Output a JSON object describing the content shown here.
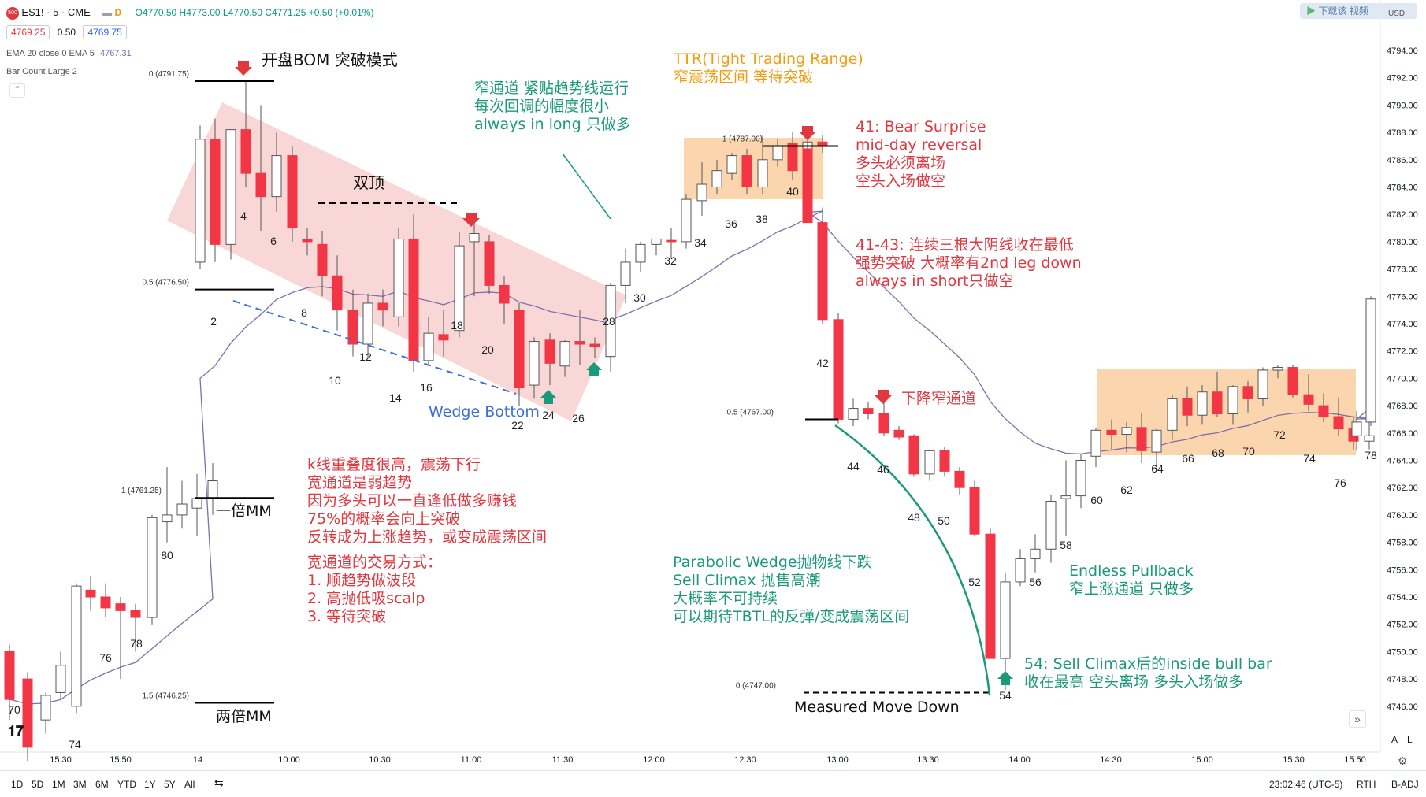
{
  "header": {
    "symbol": "ES1! · 5 · CME",
    "open": "O4770.50",
    "high": "H4773.00",
    "low": "L4770.50",
    "close": "C4771.25",
    "change": "+0.50 (+0.01%)",
    "bid": "4769.25",
    "spread": "0.50",
    "ask": "4769.75",
    "ema_label": "EMA 20 close 0 EMA 5",
    "ema_value": "4767.31",
    "indicator2": "Bar Count Large 2",
    "top_right": "下载该 视频",
    "currency": "USD"
  },
  "colors": {
    "up": "#ffffff",
    "down": "#f23645",
    "ema": "#7e6fb0",
    "zone": "#f6b26b",
    "red_text": "#e2373f",
    "green_text": "#1a9a7a",
    "blue_text": "#3d6fd6",
    "orange_text": "#f39c12"
  },
  "bottom": {
    "timeframes": [
      "1D",
      "5D",
      "1M",
      "3M",
      "6M",
      "YTD",
      "1Y",
      "5Y",
      "All"
    ],
    "clock": "23:02:46 (UTC-5)",
    "session": "RTH",
    "adj": "B-ADJ",
    "scale_a": "A",
    "scale_l": "L"
  },
  "chart_data": {
    "type": "candlestick",
    "y_ticks": [
      4746,
      4748,
      4750,
      4752,
      4754,
      4756,
      4758,
      4760,
      4762,
      4764,
      4766,
      4768,
      4770,
      4772,
      4774,
      4776,
      4778,
      4780,
      4782,
      4784,
      4786,
      4788,
      4790,
      4792,
      4794
    ],
    "x_ticks": [
      "15:30",
      "15:50",
      "14",
      "10:00",
      "10:30",
      "11:00",
      "11:30",
      "12:00",
      "12:30",
      "13:00",
      "13:30",
      "14:00",
      "14:30",
      "15:00",
      "15:30",
      "15:50"
    ],
    "candles": [
      [
        4750,
        4750.5,
        4745,
        4746.5
      ],
      [
        4748,
        4748.5,
        4742,
        4743
      ],
      [
        4745,
        4747,
        4744,
        4746.8
      ],
      [
        4747,
        4750,
        4746.5,
        4749
      ],
      [
        4746,
        4755,
        4745.5,
        4754.8
      ],
      [
        4754.5,
        4755.5,
        4753,
        4754
      ],
      [
        4754,
        4755,
        4752.5,
        4753.2
      ],
      [
        4753.5,
        4754,
        4748,
        4753
      ],
      [
        4753,
        4753.5,
        4750,
        4752.5
      ],
      [
        4752.5,
        4760,
        4752,
        4759.8
      ],
      [
        4759.5,
        4763.5,
        4758,
        4760
      ],
      [
        4760,
        4762.5,
        4759,
        4760.8
      ],
      [
        4760.5,
        4763,
        4758.5,
        4761.2
      ],
      [
        4761.2,
        4763.8,
        4760,
        4762.5
      ],
      [
        4778.5,
        4788.5,
        4778,
        4787.5
      ],
      [
        4787.5,
        4789,
        4778.5,
        4779.8
      ],
      [
        4779.8,
        4788,
        4778.7,
        4788.2
      ],
      [
        4788.2,
        4791.8,
        4784,
        4785
      ],
      [
        4785,
        4790,
        4780.8,
        4783.3
      ],
      [
        4783.3,
        4788,
        4782.2,
        4786.3
      ],
      [
        4786.3,
        4787,
        4780,
        4781
      ],
      [
        4780.2,
        4781,
        4779,
        4780
      ],
      [
        4779.8,
        4780.8,
        4776,
        4777.5
      ],
      [
        4777.5,
        4779,
        4773.5,
        4775
      ],
      [
        4775,
        4776.5,
        4771.6,
        4772.5
      ],
      [
        4772.5,
        4776.2,
        4771.5,
        4775.5
      ],
      [
        4775.5,
        4776.5,
        4773.8,
        4775
      ],
      [
        4774.5,
        4781,
        4773.8,
        4780.2
      ],
      [
        4780.2,
        4782,
        4770.5,
        4771.3
      ],
      [
        4771.3,
        4774.5,
        4771,
        4773.3
      ],
      [
        4773.2,
        4775,
        4771.6,
        4772.8
      ],
      [
        4773.5,
        4780.7,
        4773,
        4779.7
      ],
      [
        4780,
        4782,
        4776,
        4780.6
      ],
      [
        4780,
        4780.5,
        4776.2,
        4776.8
      ],
      [
        4776.8,
        4777.5,
        4774,
        4775.5
      ],
      [
        4775,
        4775.5,
        4768,
        4769.3
      ],
      [
        4769.5,
        4773,
        4768.5,
        4772.7
      ],
      [
        4772.8,
        4773.3,
        4769.5,
        4771.1
      ],
      [
        4770.9,
        4772.8,
        4770.1,
        4772.7
      ],
      [
        4772.7,
        4775,
        4771,
        4772.5
      ],
      [
        4772.5,
        4773,
        4771.5,
        4772.3
      ],
      [
        4772.1,
        4772.7,
        4770.5,
        4771.6
      ],
      [
        4771.6,
        4777,
        4771,
        4776.8
      ],
      [
        4776.8,
        4779.5,
        4775.5,
        4778.5
      ],
      [
        4778.5,
        4780,
        4777.8,
        4779.8
      ],
      [
        4779.8,
        4780.2,
        4779,
        4780.2
      ],
      [
        4780.1,
        4781,
        4778.8,
        4780
      ],
      [
        4780,
        4783.5,
        4779.5,
        4783.1
      ],
      [
        4783,
        4785.8,
        4781.9,
        4784.2
      ],
      [
        4784,
        4786,
        4783.5,
        4785.2
      ],
      [
        4785,
        4786.5,
        4784.5,
        4786.3
      ],
      [
        4786.3,
        4786.8,
        4783.5,
        4784
      ],
      [
        4784,
        4787.8,
        4783.5,
        4786
      ],
      [
        4786,
        4787.5,
        4785.5,
        4787
      ],
      [
        4787.2,
        4788,
        4784.5,
        4785.2
      ],
      [
        4785.2,
        4787.5,
        4784.5,
        4787.3
      ],
      [
        4787.3,
        4787.8,
        4786.5,
        4787
      ],
      [
        4786.8,
        4787.5,
        4781.5,
        4781.4
      ],
      [
        4781.4,
        4782.5,
        4774,
        4774.3
      ],
      [
        4774.3,
        4774.8,
        4766.7,
        4767
      ],
      [
        4767,
        4768.5,
        4766.5,
        4767.8
      ],
      [
        4767.8,
        4768.3,
        4767,
        4767.4
      ],
      [
        4767.4,
        4768.3,
        4765.8,
        4766
      ],
      [
        4766.2,
        4766.5,
        4765.5,
        4765.7
      ],
      [
        4765.8,
        4765.9,
        4762.8,
        4763
      ],
      [
        4763,
        4764.8,
        4762.5,
        4764.7
      ],
      [
        4764.7,
        4765,
        4762.8,
        4763.2
      ],
      [
        4763.2,
        4763.5,
        4761.5,
        4762
      ],
      [
        4762,
        4762.5,
        4758.5,
        4758.6
      ],
      [
        4758.6,
        4759,
        4749.5,
        4749.5
      ],
      [
        4749.5,
        4755.8,
        4747.2,
        4755.1
      ],
      [
        4755.1,
        4757.5,
        4754.8,
        4756.8
      ],
      [
        4756.8,
        4758.6,
        4755.8,
        4757.5
      ],
      [
        4757.5,
        4761.5,
        4756.5,
        4761
      ],
      [
        4761.2,
        4764,
        4758.5,
        4761.4
      ],
      [
        4761.4,
        4764.5,
        4760.5,
        4764
      ],
      [
        4764.3,
        4766.4,
        4763.5,
        4766.2
      ],
      [
        4766.2,
        4767,
        4764.8,
        4765.9
      ],
      [
        4765.9,
        4766.8,
        4764.6,
        4766.4
      ],
      [
        4766.4,
        4767.5,
        4763.8,
        4764.7
      ],
      [
        4764.6,
        4766.3,
        4763.2,
        4766.2
      ],
      [
        4766.2,
        4768.8,
        4765.5,
        4768.5
      ],
      [
        4768.5,
        4769.4,
        4766.5,
        4767.3
      ],
      [
        4767.3,
        4769.5,
        4766.6,
        4769
      ],
      [
        4769,
        4770.5,
        4767.2,
        4767.4
      ],
      [
        4767.4,
        4769.5,
        4766.6,
        4769.4
      ],
      [
        4769.4,
        4769.8,
        4767.5,
        4768.5
      ],
      [
        4768.5,
        4770.8,
        4768,
        4770.6
      ],
      [
        4770.6,
        4771,
        4770,
        4770.8
      ],
      [
        4770.8,
        4771,
        4768.6,
        4768.8
      ],
      [
        4768.8,
        4770.3,
        4767.6,
        4768.1
      ],
      [
        4768,
        4768.9,
        4766.8,
        4767.2
      ],
      [
        4767.2,
        4768.6,
        4765.8,
        4766.3
      ],
      [
        4766.3,
        4767.2,
        4764.8,
        4765.4
      ],
      [
        4765.4,
        4767.6,
        4764.8,
        4765.8
      ],
      [
        4765.8,
        4767.6,
        4764.7,
        4766.8
      ],
      [
        4766.8,
        4776,
        4766.5,
        4775.8
      ]
    ],
    "bar_numbers": [
      "2",
      "4",
      "6",
      "8",
      "10",
      "12",
      "14",
      "16",
      "18",
      "20",
      "22",
      "24",
      "26",
      "28",
      "30",
      "32",
      "34",
      "36",
      "38",
      "40",
      "42",
      "44",
      "46",
      "48",
      "50",
      "52",
      "54",
      "56",
      "58",
      "60",
      "62",
      "64",
      "66",
      "68",
      "70",
      "72",
      "74",
      "76",
      "78",
      "70",
      "74",
      "76",
      "78",
      "80"
    ],
    "levels": [
      {
        "label": "0 (4791.75)",
        "value": 4791.75
      },
      {
        "label": "0.5 (4776.50)",
        "value": 4776.5
      },
      {
        "label": "1 (4761.25)",
        "value": 4761.25
      },
      {
        "label": "1.5 (4746.25)",
        "value": 4746.25
      },
      {
        "label": "1 (4787.00)",
        "value": 4787.0
      },
      {
        "label": "0.5 (4767.00)",
        "value": 4767.0
      },
      {
        "label": "0 (4747.00)",
        "value": 4747.0
      }
    ],
    "annotations": {
      "bom": "开盘BOM 突破模式",
      "double_top": "双顶",
      "narrow_channel": [
        "窄通道 紧贴趋势线运行",
        "每次回调的幅度很小",
        "always in long 只做多"
      ],
      "ttr": [
        "TTR(Tight Trading Range)",
        "窄震荡区间 等待突破"
      ],
      "bear_surprise": [
        "41: Bear Surprise",
        "mid-day reversal",
        "多头必须离场",
        "空头入场做空"
      ],
      "three_bears": [
        "41-43: 连续三根大阴线收在最低",
        "强势突破 大概率有2nd leg down",
        "always in short只做空"
      ],
      "down_channel": "下降窄通道",
      "wedge_bottom": "Wedge Bottom",
      "wide_channel": [
        "k线重叠度很高，震荡下行",
        "宽通道是弱趋势",
        "因为多头可以一直逢低做多赚钱",
        "75%的概率会向上突破",
        "反转成为上涨趋势，或变成震荡区间"
      ],
      "wide_trade": [
        "宽通道的交易方式：",
        "1. 顺趋势做波段",
        "2. 高抛低吸scalp",
        "3. 等待突破"
      ],
      "parabolic": [
        "Parabolic Wedge抛物线下跌",
        "Sell Climax 抛售高潮",
        "大概率不可持续",
        "可以期待TBTL的反弹/变成震荡区间"
      ],
      "endless": [
        "Endless Pullback",
        "窄上涨通道 只做多"
      ],
      "inside_bull": [
        "54: Sell Climax后的inside bull bar",
        "收在最高 空头离场 多头入场做多"
      ],
      "mm_1x": "一倍MM",
      "mm_2x": "两倍MM",
      "mm_down": "Measured Move Down"
    }
  }
}
